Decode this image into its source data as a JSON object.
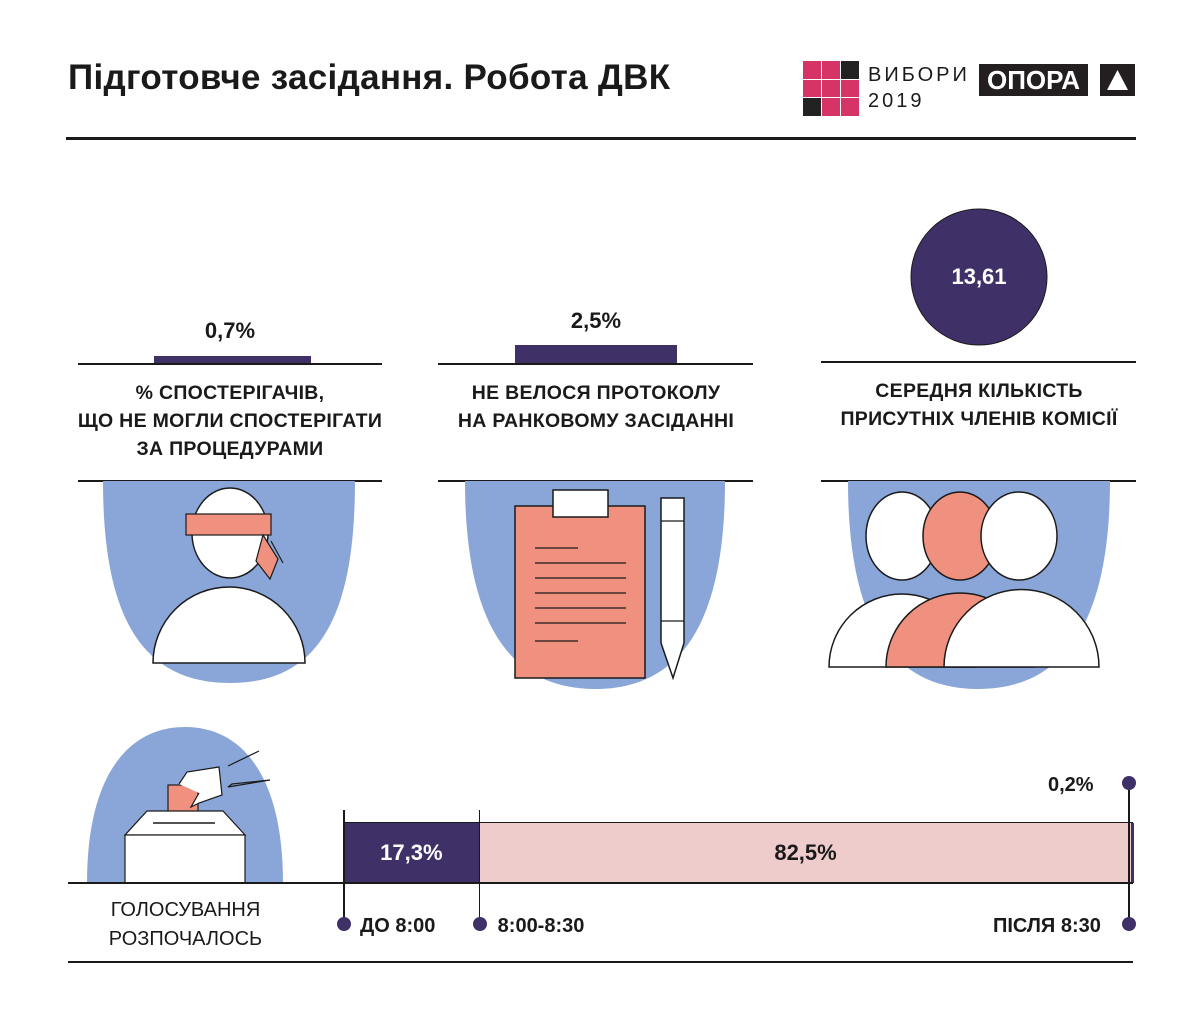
{
  "header": {
    "title": "Підготовче засідання. Робота ДВК",
    "logo_vybory_line1": "ВИБОРИ",
    "logo_vybory_line2": "2019",
    "logo_opora": "ОПОРА"
  },
  "colors": {
    "purple": "#3f3168",
    "blue": "#8aa6d8",
    "salmon": "#f0907f",
    "pink": "#efcccc",
    "logo_pink": "#d63466"
  },
  "stats": [
    {
      "value_label": "0,7%",
      "value": 0.7,
      "label_lines": [
        "% СПОСТЕРІГАЧІВ,",
        "ЩО НЕ МОГЛИ СПОСТЕРІГАТИ",
        "ЗА ПРОЦЕДУРАМИ"
      ],
      "icon": "blindfolded-observer-icon"
    },
    {
      "value_label": "2,5%",
      "value": 2.5,
      "label_lines": [
        "НЕ ВЕЛОСЯ ПРОТОКОЛУ",
        "НА РАНКОВОМУ ЗАСІДАННІ"
      ],
      "icon": "clipboard-pen-icon"
    },
    {
      "value_label": "13,61",
      "value": 13.61,
      "label_lines": [
        "СЕРЕДНЯ КІЛЬКІСТЬ",
        "ПРИСУТНІХ ЧЛЕНІВ КОМІСІЇ"
      ],
      "icon": "commission-members-icon"
    }
  ],
  "chart_data": {
    "type": "bar",
    "orientation": "horizontal-stacked",
    "title": "ГОЛОСУВАННЯ РОЗПОЧАЛОСЬ",
    "title_lines": [
      "ГОЛОСУВАННЯ",
      "РОЗПОЧАЛОСЬ"
    ],
    "categories": [
      "ДО 8:00",
      "8:00-8:30",
      "ПІСЛЯ 8:30"
    ],
    "values": [
      17.3,
      82.5,
      0.2
    ],
    "value_labels": [
      "17,3%",
      "82,5%",
      "0,2%"
    ],
    "colors": [
      "#3f3168",
      "#efcccc",
      "#3f3168"
    ],
    "unit": "%"
  }
}
